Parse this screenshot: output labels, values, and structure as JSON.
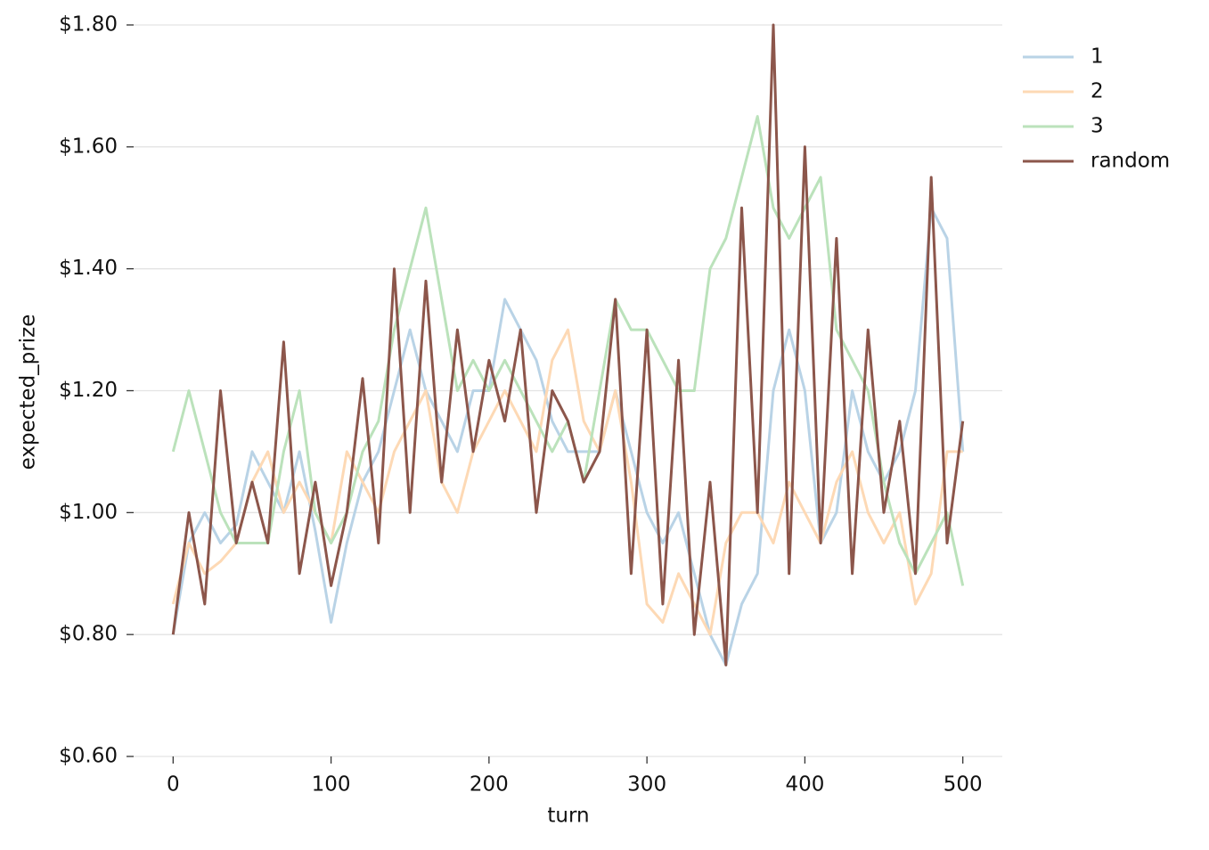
{
  "chart_data": {
    "type": "line",
    "xlabel": "turn",
    "ylabel": "expected_prize",
    "x": [
      0,
      10,
      20,
      30,
      40,
      50,
      60,
      70,
      80,
      90,
      100,
      110,
      120,
      130,
      140,
      150,
      160,
      170,
      180,
      190,
      200,
      210,
      220,
      230,
      240,
      250,
      260,
      270,
      280,
      290,
      300,
      310,
      320,
      330,
      340,
      350,
      360,
      370,
      380,
      390,
      400,
      410,
      420,
      430,
      440,
      450,
      460,
      470,
      480,
      490,
      500
    ],
    "series": [
      {
        "name": "1",
        "color": "#b9d3e6",
        "values": [
          0.8,
          0.95,
          1.0,
          0.95,
          0.98,
          1.1,
          1.05,
          1.0,
          1.1,
          0.97,
          0.82,
          0.95,
          1.05,
          1.1,
          1.2,
          1.3,
          1.2,
          1.15,
          1.1,
          1.2,
          1.2,
          1.35,
          1.3,
          1.25,
          1.15,
          1.1,
          1.1,
          1.1,
          1.2,
          1.1,
          1.0,
          0.95,
          1.0,
          0.9,
          0.8,
          0.75,
          0.85,
          0.9,
          1.2,
          1.3,
          1.2,
          0.95,
          1.0,
          1.2,
          1.1,
          1.05,
          1.1,
          1.2,
          1.5,
          1.45,
          1.1
        ]
      },
      {
        "name": "2",
        "color": "#fdd9b5",
        "values": [
          0.85,
          0.95,
          0.9,
          0.92,
          0.95,
          1.05,
          1.1,
          1.0,
          1.05,
          1.0,
          0.95,
          1.1,
          1.05,
          1.0,
          1.1,
          1.15,
          1.2,
          1.05,
          1.0,
          1.1,
          1.15,
          1.2,
          1.15,
          1.1,
          1.25,
          1.3,
          1.15,
          1.1,
          1.2,
          1.05,
          0.85,
          0.82,
          0.9,
          0.85,
          0.8,
          0.95,
          1.0,
          1.0,
          0.95,
          1.05,
          1.0,
          0.95,
          1.05,
          1.1,
          1.0,
          0.95,
          1.0,
          0.85,
          0.9,
          1.1,
          1.1
        ]
      },
      {
        "name": "3",
        "color": "#bbe2bb",
        "values": [
          1.1,
          1.2,
          1.1,
          1.0,
          0.95,
          0.95,
          0.95,
          1.1,
          1.2,
          1.0,
          0.95,
          1.0,
          1.1,
          1.15,
          1.3,
          1.4,
          1.5,
          1.35,
          1.2,
          1.25,
          1.2,
          1.25,
          1.2,
          1.15,
          1.1,
          1.15,
          1.05,
          1.2,
          1.35,
          1.3,
          1.3,
          1.25,
          1.2,
          1.2,
          1.4,
          1.45,
          1.55,
          1.65,
          1.5,
          1.45,
          1.5,
          1.55,
          1.3,
          1.25,
          1.2,
          1.05,
          0.95,
          0.9,
          0.95,
          1.0,
          0.88
        ]
      },
      {
        "name": "random",
        "color": "#8c564b",
        "values": [
          0.8,
          1.0,
          0.85,
          1.2,
          0.95,
          1.05,
          0.95,
          1.28,
          0.9,
          1.05,
          0.88,
          1.0,
          1.22,
          0.95,
          1.4,
          1.0,
          1.38,
          1.05,
          1.3,
          1.1,
          1.25,
          1.15,
          1.3,
          1.0,
          1.2,
          1.15,
          1.05,
          1.1,
          1.35,
          0.9,
          1.3,
          0.85,
          1.25,
          0.8,
          1.05,
          0.75,
          1.5,
          1.0,
          1.8,
          0.9,
          1.6,
          0.95,
          1.45,
          0.9,
          1.3,
          1.0,
          1.15,
          0.9,
          1.55,
          0.95,
          1.15
        ]
      }
    ],
    "xlim": [
      -25,
      525
    ],
    "xticks": [
      0,
      100,
      200,
      300,
      400,
      500
    ],
    "ylim": [
      0.6,
      1.8
    ],
    "yticks": [
      {
        "value": 0.6,
        "label": "$0.60"
      },
      {
        "value": 0.8,
        "label": "$0.80"
      },
      {
        "value": 1.0,
        "label": "$1.00"
      },
      {
        "value": 1.2,
        "label": "$1.20"
      },
      {
        "value": 1.4,
        "label": "$1.40"
      },
      {
        "value": 1.6,
        "label": "$1.60"
      },
      {
        "value": 1.8,
        "label": "$1.80"
      }
    ],
    "grid": true,
    "legend": "outside upper right"
  }
}
